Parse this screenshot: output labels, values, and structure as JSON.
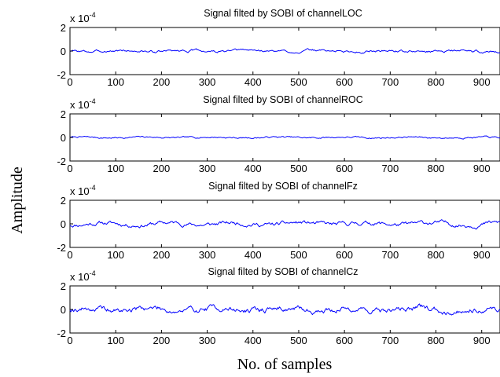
{
  "figure": {
    "ylabel": "Amplitude",
    "xlabel": "No. of samples"
  },
  "chart_data": [
    {
      "type": "line",
      "title": "Signal filted by SOBI of channelLOC",
      "exponent_prefix": "x 10",
      "exponent_power": "-4",
      "xlim": [
        0,
        940
      ],
      "ylim": [
        -2,
        2
      ],
      "xticks": [
        0,
        100,
        200,
        300,
        400,
        500,
        600,
        700,
        800,
        900
      ],
      "yticks": [
        -2,
        0,
        2
      ],
      "series_color": "#0000ff",
      "amplitude": 0.15,
      "seed": 3
    },
    {
      "type": "line",
      "title": "Signal filted by SOBI of channelROC",
      "exponent_prefix": "x 10",
      "exponent_power": "-4",
      "xlim": [
        0,
        940
      ],
      "ylim": [
        -2,
        2
      ],
      "xticks": [
        0,
        100,
        200,
        300,
        400,
        500,
        600,
        700,
        800,
        900
      ],
      "yticks": [
        -2,
        0,
        2
      ],
      "series_color": "#0000ff",
      "amplitude": 0.1,
      "seed": 7
    },
    {
      "type": "line",
      "title": "Signal filted by SOBI of channelFz",
      "exponent_prefix": "x 10",
      "exponent_power": "-4",
      "xlim": [
        0,
        940
      ],
      "ylim": [
        -2,
        2
      ],
      "xticks": [
        0,
        100,
        200,
        300,
        400,
        500,
        600,
        700,
        800,
        900
      ],
      "yticks": [
        -2,
        0,
        2
      ],
      "series_color": "#0000ff",
      "amplitude": 0.25,
      "seed": 11
    },
    {
      "type": "line",
      "title": "Signal filted by SOBI of channelCz",
      "exponent_prefix": "x 10",
      "exponent_power": "-4",
      "xlim": [
        0,
        940
      ],
      "ylim": [
        -2,
        2
      ],
      "xticks": [
        0,
        100,
        200,
        300,
        400,
        500,
        600,
        700,
        800,
        900
      ],
      "yticks": [
        -2,
        0,
        2
      ],
      "series_color": "#0000ff",
      "amplitude": 0.35,
      "seed": 19
    }
  ]
}
